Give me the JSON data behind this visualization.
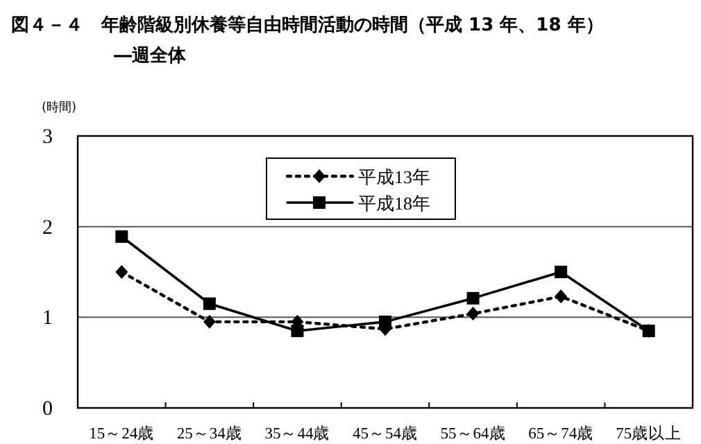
{
  "chart_data": {
    "type": "line",
    "title": "図４－４　年齢階級別休養等自由時間活動の時間（平成 13 年、18 年）",
    "subtitle": "―週全体",
    "ylabel": "(時間)",
    "categories": [
      "15～24歳",
      "25～34歳",
      "35～44歳",
      "45～54歳",
      "55～64歳",
      "65～74歳",
      "75歳以上"
    ],
    "series": [
      {
        "name": "平成13年",
        "color": "#000000",
        "marker": "diamond",
        "line_style": "dotted",
        "values": [
          1.5,
          0.95,
          0.95,
          0.87,
          1.04,
          1.23,
          0.85
        ]
      },
      {
        "name": "平成18年",
        "color": "#000000",
        "marker": "square",
        "line_style": "solid",
        "values": [
          1.89,
          1.15,
          0.85,
          0.95,
          1.21,
          1.5,
          0.85
        ]
      }
    ],
    "ylim": [
      0,
      3
    ],
    "yticks": [
      0,
      1,
      2,
      3
    ],
    "grid": "y",
    "legend": "top"
  }
}
